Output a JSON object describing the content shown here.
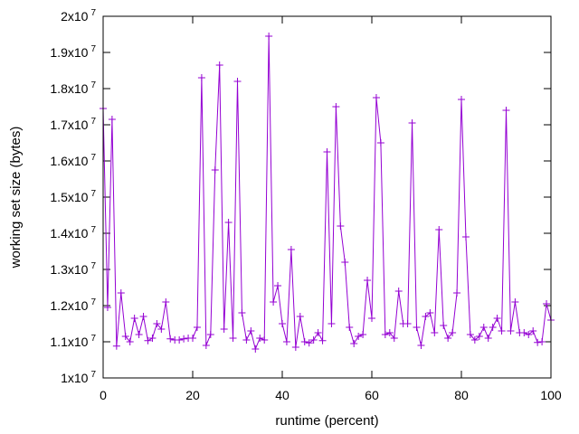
{
  "chart_data": {
    "type": "line",
    "xlabel": "runtime (percent)",
    "ylabel": "working set size (bytes)",
    "xlim": [
      0,
      100
    ],
    "ylim": [
      10000000,
      20000000
    ],
    "xticks": [
      0,
      20,
      40,
      60,
      80,
      100
    ],
    "yticks": [
      {
        "value": 10000000,
        "mantissa": "1",
        "exp": "7"
      },
      {
        "value": 11000000,
        "mantissa": "1.1",
        "exp": "7"
      },
      {
        "value": 12000000,
        "mantissa": "1.2",
        "exp": "7"
      },
      {
        "value": 13000000,
        "mantissa": "1.3",
        "exp": "7"
      },
      {
        "value": 14000000,
        "mantissa": "1.4",
        "exp": "7"
      },
      {
        "value": 15000000,
        "mantissa": "1.5",
        "exp": "7"
      },
      {
        "value": 16000000,
        "mantissa": "1.6",
        "exp": "7"
      },
      {
        "value": 17000000,
        "mantissa": "1.7",
        "exp": "7"
      },
      {
        "value": 18000000,
        "mantissa": "1.8",
        "exp": "7"
      },
      {
        "value": 19000000,
        "mantissa": "1.9",
        "exp": "7"
      },
      {
        "value": 20000000,
        "mantissa": "2",
        "exp": "7"
      }
    ],
    "grid": false,
    "marker": "plus",
    "series_color": "#9400d3",
    "series": [
      {
        "x": [
          0,
          1,
          2,
          3,
          4,
          5,
          6,
          7,
          8,
          9,
          10,
          11,
          12,
          13,
          14,
          15,
          16,
          17,
          18,
          19,
          20,
          21,
          22,
          23,
          24,
          25,
          26,
          27,
          28,
          29,
          30,
          31,
          32,
          33,
          34,
          35,
          36,
          37,
          38,
          39,
          40,
          41,
          42,
          43,
          44,
          45,
          46,
          47,
          48,
          49,
          50,
          51,
          52,
          53,
          54,
          55,
          56,
          57,
          58,
          59,
          60,
          61,
          62,
          63,
          64,
          65,
          66,
          67,
          68,
          69,
          70,
          71,
          72,
          73,
          74,
          75,
          76,
          77,
          78,
          79,
          80,
          81,
          82,
          83,
          84,
          85,
          86,
          87,
          88,
          89,
          90,
          91,
          92,
          93,
          94,
          95,
          96,
          97,
          98,
          99,
          100
        ],
        "values": [
          17450000,
          11950000,
          17150000,
          10880000,
          12350000,
          11150000,
          11000000,
          11650000,
          11200000,
          11700000,
          11030000,
          11100000,
          11500000,
          11350000,
          12100000,
          11080000,
          11050000,
          11050000,
          11080000,
          11100000,
          11100000,
          11400000,
          18300000,
          10900000,
          11200000,
          15750000,
          18650000,
          11350000,
          14300000,
          11100000,
          18200000,
          11800000,
          11050000,
          11300000,
          10800000,
          11100000,
          11050000,
          19450000,
          12100000,
          12550000,
          11500000,
          11000000,
          13550000,
          10850000,
          11700000,
          11000000,
          10970000,
          11050000,
          11250000,
          11030000,
          16250000,
          11500000,
          17500000,
          14200000,
          13200000,
          11400000,
          10950000,
          11150000,
          11200000,
          12700000,
          11650000,
          17750000,
          16500000,
          11200000,
          11250000,
          11100000,
          12400000,
          11500000,
          11500000,
          17050000,
          11400000,
          10900000,
          11700000,
          11800000,
          11250000,
          14100000,
          11450000,
          11100000,
          11250000,
          12350000,
          17700000,
          13900000,
          11200000,
          11050000,
          11150000,
          11400000,
          11100000,
          11400000,
          11650000,
          11300000,
          17400000,
          11300000,
          12100000,
          11250000,
          11250000,
          11200000,
          11300000,
          10980000,
          11000000,
          12050000,
          11600000
        ]
      }
    ]
  }
}
